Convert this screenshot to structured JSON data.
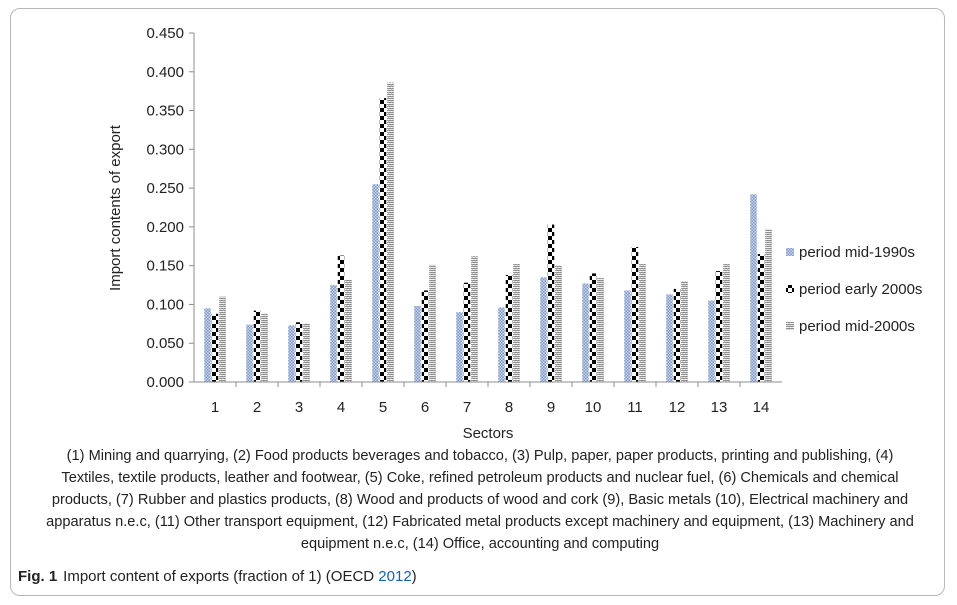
{
  "chart_data": {
    "type": "bar",
    "xlabel": "Sectors",
    "ylabel": "Import contents of export",
    "ylim": [
      0,
      0.45
    ],
    "yticks": [
      "0.000",
      "0.050",
      "0.100",
      "0.150",
      "0.200",
      "0.250",
      "0.300",
      "0.350",
      "0.400",
      "0.450"
    ],
    "categories": [
      "1",
      "2",
      "3",
      "4",
      "5",
      "6",
      "7",
      "8",
      "9",
      "10",
      "11",
      "12",
      "13",
      "14"
    ],
    "series": [
      {
        "name": "period mid-1990s",
        "color": "#9fb4d8",
        "values": [
          0.095,
          0.074,
          0.073,
          0.125,
          0.255,
          0.098,
          0.09,
          0.096,
          0.135,
          0.127,
          0.118,
          0.113,
          0.105,
          0.242
        ]
      },
      {
        "name": "period early 2000s",
        "color": "#000000",
        "values": [
          0.088,
          0.092,
          0.077,
          0.163,
          0.366,
          0.118,
          0.128,
          0.138,
          0.203,
          0.14,
          0.174,
          0.12,
          0.143,
          0.165
        ]
      },
      {
        "name": "period mid-2000s",
        "color": "#8a8a8a",
        "values": [
          0.11,
          0.088,
          0.076,
          0.132,
          0.386,
          0.151,
          0.162,
          0.152,
          0.15,
          0.134,
          0.152,
          0.13,
          0.152,
          0.197
        ]
      }
    ],
    "legend_position": "right",
    "grid": false
  },
  "notes": "(1) Mining and quarrying, (2) Food products beverages and tobacco, (3) Pulp, paper, paper products, printing and publishing, (4) Textiles, textile products, leather and footwear, (5) Coke, refined petroleum products and nuclear fuel, (6) Chemicals and chemical products, (7) Rubber and plastics products, (8) Wood and products of wood and cork (9), Basic metals (10), Electrical machinery and apparatus n.e.c, (11) Other transport equipment, (12) Fabricated metal products except machinery and equipment, (13) Machinery and equipment n.e.c, (14) Office, accounting and computing",
  "caption": {
    "label": "Fig. 1",
    "text": "Import content of exports (fraction of 1) (OECD ",
    "ref": "2012",
    "close": ")"
  }
}
